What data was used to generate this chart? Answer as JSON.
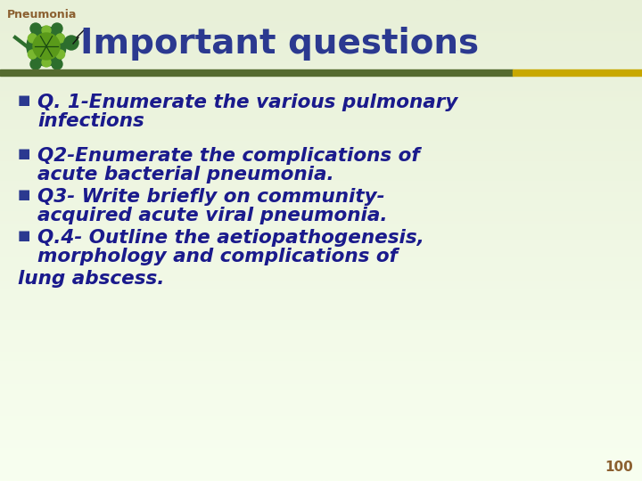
{
  "title": "Important questions",
  "subtitle_label": "Pneumonia",
  "bg_top_color": "#e8f0d8",
  "bg_bottom_color": "#f8fff0",
  "title_color": "#2b3990",
  "subtitle_color": "#8B6030",
  "bullet_color": "#1a1a8c",
  "bullet_char": "■",
  "divider_color_left": "#556b2f",
  "divider_color_right": "#c8a800",
  "page_number": "100",
  "page_number_color": "#8B6030",
  "bullet_lines": [
    [
      "Q. 1-Enumerate the various pulmonary",
      "    infections"
    ],
    [
      "Q2-Enumerate the complications of",
      "    acute bacterial pneumonia."
    ],
    [
      "Q3- Write briefly on community-",
      "    acquired acute viral pneumonia."
    ],
    [
      "Q.4- Outline the aetiopathogenesis,",
      "    morphology and complications of"
    ]
  ],
  "last_line": "lung abscess.",
  "font_size_title": 28,
  "font_size_bullet": 15.5,
  "font_size_subtitle": 9,
  "font_size_page": 11
}
